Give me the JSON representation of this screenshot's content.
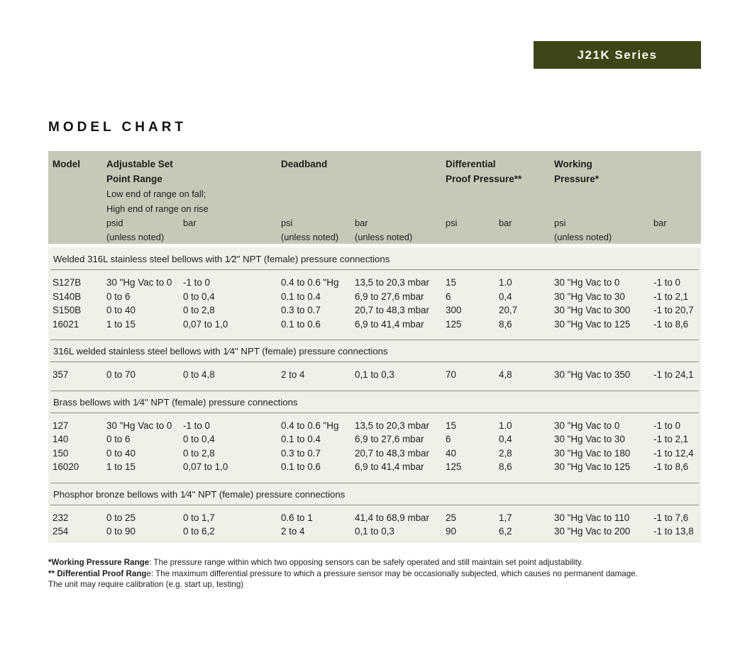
{
  "banner": {
    "label": "J21K Series"
  },
  "page_title": "MODEL CHART",
  "colors": {
    "banner_bg": "#3c4616",
    "banner_text": "#fdfdf2",
    "table_header_bg": "#c6c9b7",
    "table_body_bg": "#f1f0e8",
    "rule": "#8c8c83",
    "text": "#1d1d1b"
  },
  "table": {
    "columns": {
      "model": "Model",
      "adjustable": "Adjustable Set\nPoint Range",
      "adjustable_note": "Low end of range on fall;\nHigh end of range on rise",
      "deadband": "Deadband",
      "differential": "Differential\nProof Pressure**",
      "working": "Working\nPressure*"
    },
    "units": [
      "psid\n(unless noted)",
      "bar",
      "psi\n(unless noted)",
      "bar\n(unless noted)",
      "psi",
      "bar",
      "psi\n(unless noted)",
      "bar"
    ],
    "sections": [
      {
        "title": "Welded 316L stainless steel bellows with 1⁄2\" NPT (female) pressure connections",
        "rows": [
          [
            "S127B",
            "30 \"Hg Vac to 0",
            "-1 to 0",
            "0.4 to 0.6 \"Hg",
            "13,5 to 20,3 mbar",
            "15",
            "1.0",
            "30 \"Hg Vac to 0",
            "-1 to 0"
          ],
          [
            "S140B",
            "0 to 6",
            "0 to 0,4",
            "0.1 to 0.4",
            "6,9 to 27,6 mbar",
            "6",
            "0,4",
            "30 \"Hg Vac to 30",
            "-1 to 2,1"
          ],
          [
            "S150B",
            "0 to 40",
            "0 to 2,8",
            "0.3 to 0.7",
            "20,7 to 48,3 mbar",
            "300",
            "20,7",
            "30 \"Hg Vac to 300",
            "-1 to 20,7"
          ],
          [
            "16021",
            "1 to 15",
            "0,07 to 1,0",
            "0.1 to 0.6",
            "6,9 to 41,4 mbar",
            "125",
            "8,6",
            "30 \"Hg Vac to 125",
            "-1 to 8,6"
          ]
        ]
      },
      {
        "title": "316L welded stainless steel bellows with 1⁄4\" NPT (female) pressure connections",
        "rows": [
          [
            "357",
            "0 to 70",
            "0 to 4,8",
            "2 to 4",
            "0,1 to 0,3",
            "70",
            "4,8",
            "30 \"Hg Vac to 350",
            "-1 to 24,1"
          ]
        ]
      },
      {
        "title": "Brass bellows with 1⁄4\" NPT (female) pressure connections",
        "rows": [
          [
            "127",
            "30 \"Hg Vac to 0",
            "-1 to 0",
            "0.4 to 0.6 \"Hg",
            "13,5 to 20,3 mbar",
            "15",
            "1.0",
            "30 \"Hg Vac to 0",
            "-1 to 0"
          ],
          [
            "140",
            "0 to 6",
            "0 to 0,4",
            "0.1 to 0.4",
            "6,9 to 27,6 mbar",
            "6",
            "0,4",
            "30 \"Hg Vac to 30",
            "-1 to 2,1"
          ],
          [
            "150",
            "0 to 40",
            "0 to 2,8",
            "0.3 to 0.7",
            "20,7 to 48,3 mbar",
            "40",
            "2,8",
            "30 \"Hg Vac to 180",
            "-1 to 12,4"
          ],
          [
            "16020",
            "1 to 15",
            "0,07 to 1,0",
            "0.1 to 0.6",
            "6,9 to 41,4 mbar",
            "125",
            "8,6",
            "30 \"Hg Vac to 125",
            "-1 to 8,6"
          ]
        ]
      },
      {
        "title": "Phosphor bronze bellows with 1⁄4\" NPT (female) pressure connections",
        "rows": [
          [
            "232",
            "0 to 25",
            "0 to 1,7",
            "0.6 to 1",
            "41,4 to 68,9 mbar",
            "25",
            "1,7",
            "30 \"Hg Vac to 110",
            "-1 to 7,6"
          ],
          [
            "254",
            "0 to 90",
            "0 to 6,2",
            "2 to 4",
            "0,1 to 0,3",
            "90",
            "6,2",
            "30 \"Hg Vac to 200",
            "-1 to 13,8"
          ]
        ]
      }
    ]
  },
  "footnotes": [
    {
      "bold": "*Working Pressure Range",
      "text": ": The pressure range within which two opposing sensors can be safely operated and still maintain set point adjustability."
    },
    {
      "bold": "** Differential Proof Rang",
      "text": "e:  The maximum differential pressure to which a pressure sensor may be occasionally subjected, which causes no permanent damage."
    },
    {
      "bold": "",
      "text": "The unit may require calibration (e.g. start up, testing)"
    }
  ]
}
